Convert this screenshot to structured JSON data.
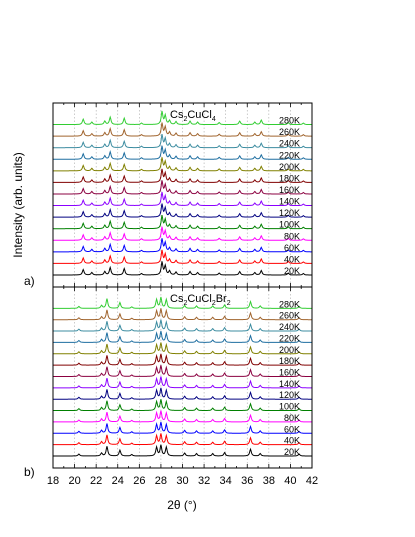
{
  "chart_data": [
    {
      "type": "line",
      "panel_label": "a)",
      "title": "Cs2CuCl4",
      "title_parts": [
        {
          "text": "Cs",
          "sub": false
        },
        {
          "text": "2",
          "sub": true
        },
        {
          "text": "CuCl",
          "sub": false
        },
        {
          "text": "4",
          "sub": true
        }
      ],
      "xlim": [
        18,
        42
      ],
      "series": [
        {
          "name": "20K",
          "color": "#000000"
        },
        {
          "name": "40K",
          "color": "#ff0000"
        },
        {
          "name": "60K",
          "color": "#0000ff"
        },
        {
          "name": "80K",
          "color": "#ff00ff"
        },
        {
          "name": "100K",
          "color": "#008000"
        },
        {
          "name": "120K",
          "color": "#000080"
        },
        {
          "name": "140K",
          "color": "#8b00ff"
        },
        {
          "name": "160K",
          "color": "#8b0040"
        },
        {
          "name": "180K",
          "color": "#800000"
        },
        {
          "name": "200K",
          "color": "#808000"
        },
        {
          "name": "220K",
          "color": "#1e6ea0"
        },
        {
          "name": "240K",
          "color": "#3c8ca0"
        },
        {
          "name": "260K",
          "color": "#a0642d"
        },
        {
          "name": "280K",
          "color": "#32cd32"
        }
      ],
      "peaks": [
        {
          "x": 20.8,
          "h": 0.55
        },
        {
          "x": 21.6,
          "h": 0.25
        },
        {
          "x": 22.8,
          "h": 0.35
        },
        {
          "x": 23.3,
          "h": 0.75
        },
        {
          "x": 24.6,
          "h": 0.65
        },
        {
          "x": 26.2,
          "h": 0.15
        },
        {
          "x": 28.1,
          "h": 1.3
        },
        {
          "x": 28.4,
          "h": 0.9
        },
        {
          "x": 28.8,
          "h": 0.4
        },
        {
          "x": 29.4,
          "h": 0.3
        },
        {
          "x": 30.7,
          "h": 0.35
        },
        {
          "x": 31.4,
          "h": 0.25
        },
        {
          "x": 33.4,
          "h": 0.2
        },
        {
          "x": 35.3,
          "h": 0.35
        },
        {
          "x": 36.7,
          "h": 0.25
        },
        {
          "x": 37.3,
          "h": 0.45
        },
        {
          "x": 39.8,
          "h": 0.2
        },
        {
          "x": 41.2,
          "h": 0.15
        }
      ]
    },
    {
      "type": "line",
      "panel_label": "b)",
      "title": "Cs2CuCl2Br2",
      "title_parts": [
        {
          "text": "Cs",
          "sub": false
        },
        {
          "text": "2",
          "sub": true
        },
        {
          "text": "CuCl",
          "sub": false
        },
        {
          "text": "2",
          "sub": true
        },
        {
          "text": "Br",
          "sub": false
        },
        {
          "text": "2",
          "sub": true
        }
      ],
      "xlim": [
        18,
        42
      ],
      "xlabel": "2θ (°)",
      "xticks": [
        18,
        20,
        22,
        24,
        26,
        28,
        30,
        32,
        34,
        36,
        38,
        40,
        42
      ],
      "series": [
        {
          "name": "20K",
          "color": "#000000"
        },
        {
          "name": "40K",
          "color": "#ff0000"
        },
        {
          "name": "60K",
          "color": "#0000ff"
        },
        {
          "name": "80K",
          "color": "#ff00ff"
        },
        {
          "name": "100K",
          "color": "#008000"
        },
        {
          "name": "120K",
          "color": "#000080"
        },
        {
          "name": "140K",
          "color": "#8b00ff"
        },
        {
          "name": "160K",
          "color": "#8b0040"
        },
        {
          "name": "180K",
          "color": "#800000"
        },
        {
          "name": "200K",
          "color": "#808000"
        },
        {
          "name": "220K",
          "color": "#1e6ea0"
        },
        {
          "name": "240K",
          "color": "#3c8ca0"
        },
        {
          "name": "260K",
          "color": "#a0642d"
        },
        {
          "name": "280K",
          "color": "#32cd32"
        }
      ],
      "peaks": [
        {
          "x": 20.4,
          "h": 0.2
        },
        {
          "x": 22.5,
          "h": 0.3
        },
        {
          "x": 23.0,
          "h": 1.0
        },
        {
          "x": 24.2,
          "h": 0.6
        },
        {
          "x": 25.3,
          "h": 0.15
        },
        {
          "x": 27.6,
          "h": 0.9
        },
        {
          "x": 28.0,
          "h": 1.1
        },
        {
          "x": 28.5,
          "h": 0.9
        },
        {
          "x": 30.2,
          "h": 0.3
        },
        {
          "x": 31.3,
          "h": 0.25
        },
        {
          "x": 32.8,
          "h": 0.25
        },
        {
          "x": 33.9,
          "h": 0.35
        },
        {
          "x": 36.3,
          "h": 0.7
        },
        {
          "x": 37.2,
          "h": 0.25
        },
        {
          "x": 40.8,
          "h": 0.2
        }
      ]
    }
  ],
  "ylabel": "Intensity (arb. units)"
}
